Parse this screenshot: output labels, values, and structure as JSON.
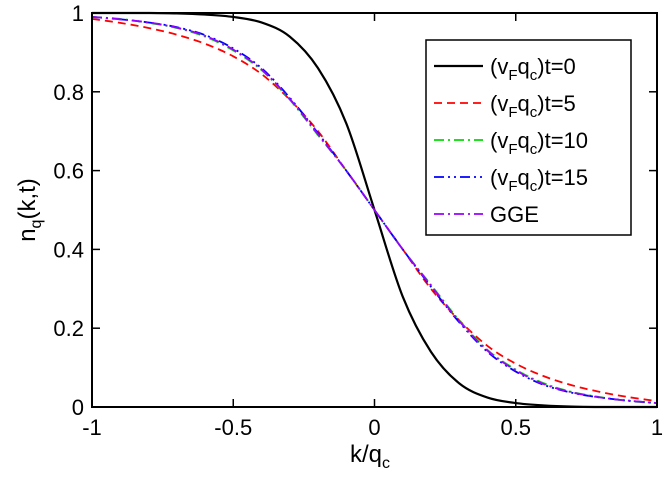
{
  "chart_data": {
    "type": "line",
    "title": "",
    "xlabel": {
      "main": "k/q",
      "sub": "c"
    },
    "ylabel": {
      "main": "n",
      "sub": "q",
      "rest": "(k,t)"
    },
    "xlim": [
      -1,
      1
    ],
    "ylim": [
      0,
      1
    ],
    "xticks": [
      -1,
      -0.5,
      0,
      0.5,
      1
    ],
    "xtick_labels": [
      "-1",
      "-0.5",
      "0",
      "0.5",
      "1"
    ],
    "yticks": [
      0,
      0.2,
      0.4,
      0.6,
      0.8,
      1
    ],
    "ytick_labels": [
      "0",
      "0.2",
      "0.4",
      "0.6",
      "0.8",
      "1"
    ],
    "grid": false,
    "legend_position": "top-right",
    "x": [
      -1,
      -0.9,
      -0.8,
      -0.7,
      -0.6,
      -0.5,
      -0.4,
      -0.3,
      -0.2,
      -0.1,
      0,
      0.1,
      0.2,
      0.3,
      0.4,
      0.5,
      0.6,
      0.7,
      0.8,
      0.9,
      1
    ],
    "series": [
      {
        "name": "(v_F q_c)t=0",
        "legend": {
          "a": "(v",
          "s1": "F",
          "b": "q",
          "s2": "c",
          "c": ")t=0"
        },
        "color": "#000000",
        "dash": "",
        "values": [
          1.0,
          1.0,
          1.0,
          0.999,
          0.996,
          0.99,
          0.976,
          0.94,
          0.86,
          0.72,
          0.5,
          0.28,
          0.14,
          0.06,
          0.024,
          0.01,
          0.004,
          0.001,
          0.0,
          0.0,
          0.0
        ]
      },
      {
        "name": "(v_F q_c)t=5",
        "legend": {
          "a": "(v",
          "s1": "F",
          "b": "q",
          "s2": "c",
          "c": ")t=5"
        },
        "color": "#ff0000",
        "dash": "8,5",
        "values": [
          0.985,
          0.975,
          0.962,
          0.945,
          0.922,
          0.89,
          0.845,
          0.78,
          0.7,
          0.6,
          0.5,
          0.4,
          0.3,
          0.22,
          0.155,
          0.11,
          0.078,
          0.055,
          0.038,
          0.025,
          0.015
        ]
      },
      {
        "name": "(v_F q_c)t=10",
        "legend": {
          "a": "(v",
          "s1": "F",
          "b": "q",
          "s2": "c",
          "c": ")t=10"
        },
        "color": "#00dd00",
        "dash": "10,4,2,4",
        "values": [
          0.99,
          0.985,
          0.975,
          0.962,
          0.94,
          0.905,
          0.855,
          0.78,
          0.69,
          0.6,
          0.5,
          0.4,
          0.31,
          0.22,
          0.145,
          0.095,
          0.06,
          0.038,
          0.025,
          0.015,
          0.01
        ]
      },
      {
        "name": "(v_F q_c)t=15",
        "legend": {
          "a": "(v",
          "s1": "F",
          "b": "q",
          "s2": "c",
          "c": ")t=15"
        },
        "color": "#0000ff",
        "dash": "10,4,2,4,2,4",
        "values": [
          0.99,
          0.984,
          0.976,
          0.964,
          0.944,
          0.91,
          0.86,
          0.785,
          0.695,
          0.6,
          0.5,
          0.4,
          0.305,
          0.215,
          0.14,
          0.09,
          0.056,
          0.036,
          0.024,
          0.016,
          0.01
        ]
      },
      {
        "name": "GGE",
        "legend": {
          "a": "GGE",
          "s1": "",
          "b": "",
          "s2": "",
          "c": ""
        },
        "color": "#9900ff",
        "dash": "10,4,2,4",
        "values": [
          0.99,
          0.984,
          0.976,
          0.963,
          0.942,
          0.907,
          0.857,
          0.782,
          0.692,
          0.6,
          0.5,
          0.4,
          0.308,
          0.218,
          0.143,
          0.093,
          0.058,
          0.037,
          0.024,
          0.016,
          0.01
        ]
      }
    ]
  }
}
